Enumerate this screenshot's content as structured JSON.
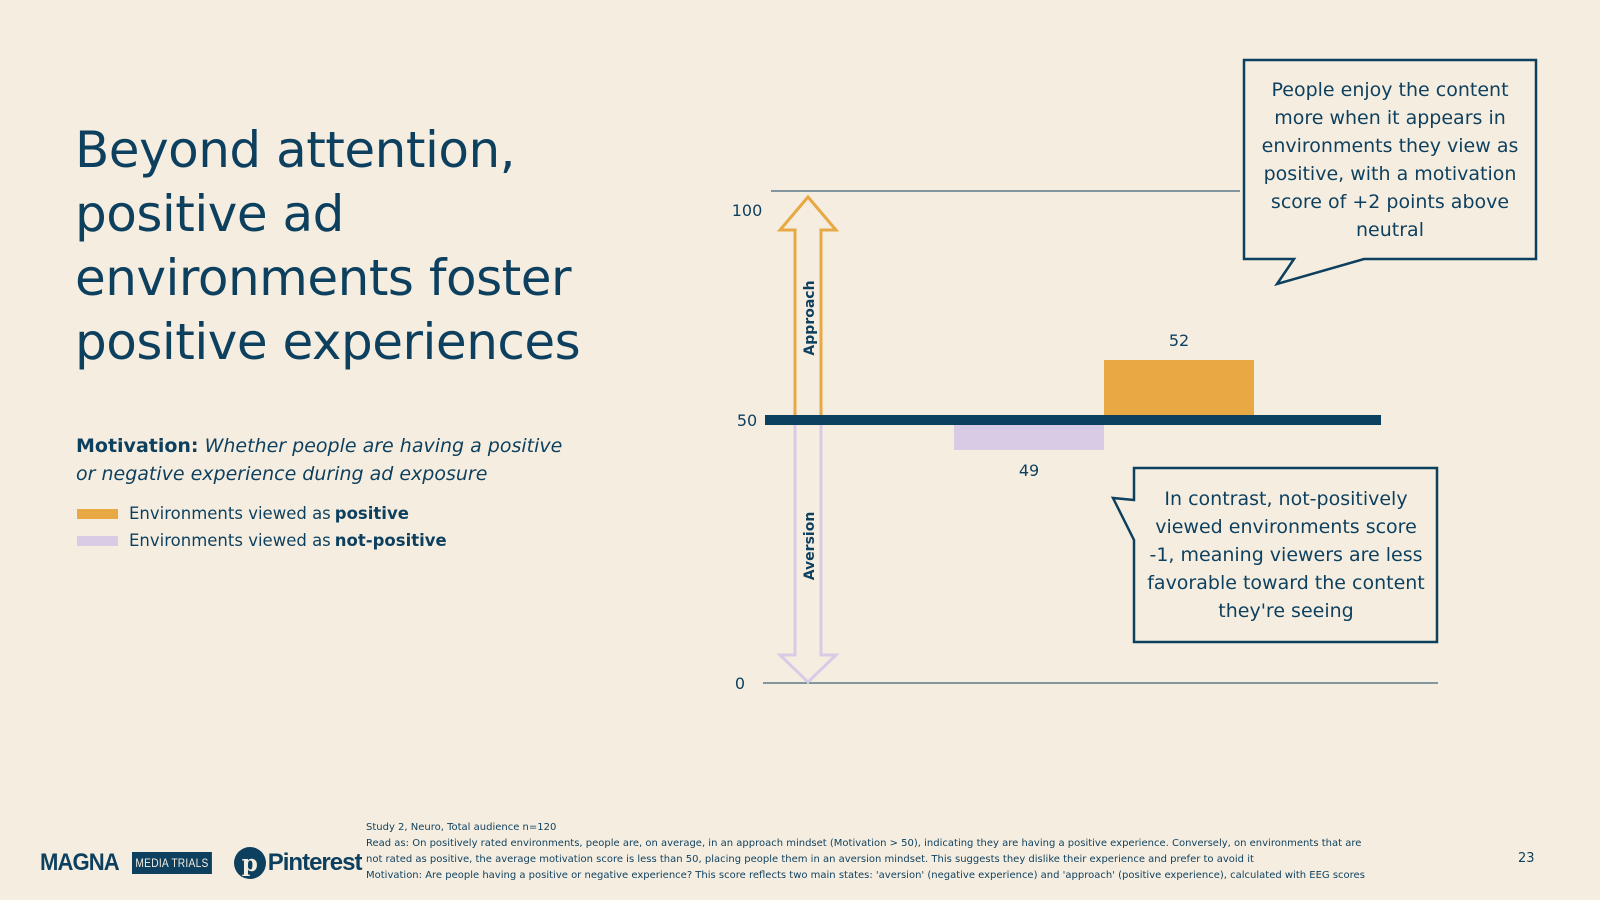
{
  "title": "Beyond attention,\npositive ad\nenvironments foster\npositive experiences",
  "motivation": {
    "label": "Motivation:",
    "description": "Whether people are having a positive or negative experience during ad exposure"
  },
  "legend": [
    {
      "prefix": "Environments viewed as",
      "emphasis": "positive",
      "color": "#e8a844"
    },
    {
      "prefix": "Environments viewed as",
      "emphasis": "not-positive",
      "color": "#d8cbe6"
    }
  ],
  "chart_data": {
    "type": "bar",
    "baseline": 50,
    "ylim": [
      0,
      100
    ],
    "y_ticks": [
      "0",
      "50",
      "100"
    ],
    "categories": [
      "Environments viewed as not-positive",
      "Environments viewed as positive"
    ],
    "values": [
      49,
      52
    ],
    "value_labels": [
      "49",
      "52"
    ],
    "colors": [
      "#d8cbe6",
      "#e8a844"
    ],
    "arrow_labels": {
      "up": "Approach",
      "down": "Aversion"
    }
  },
  "callouts": {
    "positive": "People enjoy the content more when it appears in environments they view as positive, with a motivation score of +2 points above neutral",
    "negative": "In contrast, not-positively viewed environments score -1, meaning viewers are less favorable toward the content they're seeing"
  },
  "footer": {
    "line1": "Study 2, Neuro, Total audience n=120",
    "line2": "Read as: On positively rated environments, people are, on average, in an approach mindset (Motivation > 50), indicating they are having a positive experience. Conversely, on environments that are",
    "line3": "not rated as positive, the average motivation score is less than 50, placing people them in an aversion mindset. This suggests they dislike their experience and prefer to avoid it",
    "line4": "Motivation: Are people having a positive or negative experience? This score reflects two main states: 'aversion' (negative experience) and 'approach' (positive experience), calculated with EEG scores"
  },
  "page_number": "23",
  "logos": {
    "magna": "MAGNA",
    "media_trials": "MEDIA TRIALS",
    "pinterest": "Pinterest"
  },
  "colors": {
    "navy": "#0d3f5e",
    "positive": "#e8a844",
    "not_positive": "#d8cbe6",
    "background": "#f5eee0"
  }
}
